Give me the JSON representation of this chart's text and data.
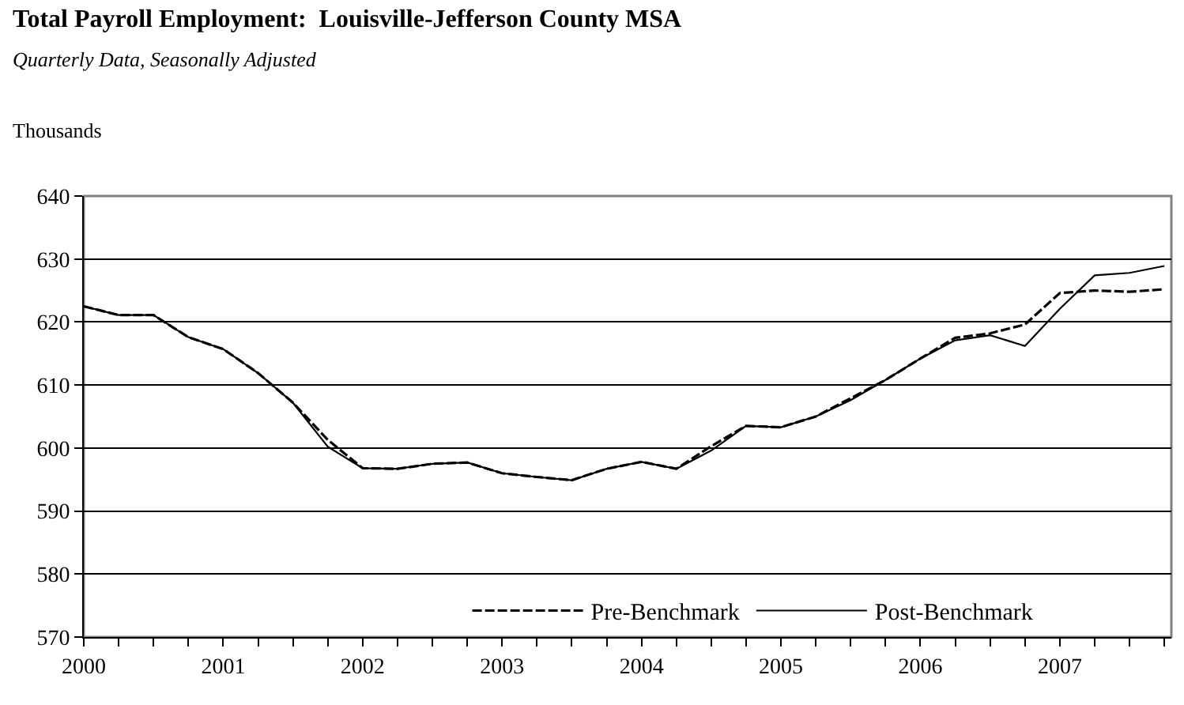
{
  "chart_data": {
    "type": "line",
    "title": "Total Payroll Employment:  Louisville-Jefferson County MSA",
    "subtitle": "Quarterly Data, Seasonally Adjusted",
    "ylabel": "Thousands",
    "x": [
      2000,
      2000.25,
      2000.5,
      2000.75,
      2001,
      2001.25,
      2001.5,
      2001.75,
      2002,
      2002.25,
      2002.5,
      2002.75,
      2003,
      2003.25,
      2003.5,
      2003.75,
      2004,
      2004.25,
      2004.5,
      2004.75,
      2005,
      2005.25,
      2005.5,
      2005.75,
      2006,
      2006.25,
      2006.5,
      2006.75,
      2007,
      2007.25,
      2007.5,
      2007.75
    ],
    "series": [
      {
        "name": "Pre-Benchmark",
        "color": "#000000",
        "line_style": "dashed",
        "values": [
          622.5,
          621.1,
          621.1,
          617.6,
          615.7,
          611.9,
          607.2,
          601.3,
          596.8,
          596.7,
          597.5,
          597.7,
          596.0,
          595.4,
          594.9,
          596.7,
          597.8,
          596.7,
          600.3,
          603.5,
          603.3,
          605.0,
          607.9,
          610.8,
          614.2,
          617.5,
          618.2,
          619.6,
          624.6,
          625.0,
          624.8,
          625.2
        ]
      },
      {
        "name": "Post-Benchmark",
        "color": "#000000",
        "line_style": "solid",
        "values": [
          622.5,
          621.1,
          621.1,
          617.6,
          615.7,
          611.9,
          607.2,
          600.2,
          596.8,
          596.7,
          597.5,
          597.7,
          596.0,
          595.4,
          594.9,
          596.7,
          597.8,
          596.7,
          599.6,
          603.5,
          603.3,
          605.0,
          607.6,
          610.8,
          614.2,
          617.1,
          617.9,
          616.2,
          622.1,
          627.4,
          627.8,
          628.9
        ]
      }
    ],
    "xlim": [
      2000,
      2007.8
    ],
    "xticks": [
      2000,
      {
        "value": 2000.25,
        "label": null
      },
      {
        "value": 2000.5,
        "label": null
      },
      {
        "value": 2000.75,
        "label": null
      },
      2001,
      {
        "value": 2001.25,
        "label": null
      },
      {
        "value": 2001.5,
        "label": null
      },
      {
        "value": 2001.75,
        "label": null
      },
      2002,
      {
        "value": 2002.25,
        "label": null
      },
      {
        "value": 2002.5,
        "label": null
      },
      {
        "value": 2002.75,
        "label": null
      },
      2003,
      {
        "value": 2003.25,
        "label": null
      },
      {
        "value": 2003.5,
        "label": null
      },
      {
        "value": 2003.75,
        "label": null
      },
      2004,
      {
        "value": 2004.25,
        "label": null
      },
      {
        "value": 2004.5,
        "label": null
      },
      {
        "value": 2004.75,
        "label": null
      },
      2005,
      {
        "value": 2005.25,
        "label": null
      },
      {
        "value": 2005.5,
        "label": null
      },
      {
        "value": 2005.75,
        "label": null
      },
      2006,
      {
        "value": 2006.25,
        "label": null
      },
      {
        "value": 2006.5,
        "label": null
      },
      {
        "value": 2006.75,
        "label": null
      },
      2007,
      {
        "value": 2007.25,
        "label": null
      },
      {
        "value": 2007.5,
        "label": null
      },
      {
        "value": 2007.75,
        "label": null
      }
    ],
    "ylim": [
      570,
      640
    ],
    "yticks": [
      570,
      580,
      590,
      600,
      610,
      620,
      630,
      640
    ],
    "grid": "y",
    "legend": "bottom",
    "marker": "none"
  }
}
